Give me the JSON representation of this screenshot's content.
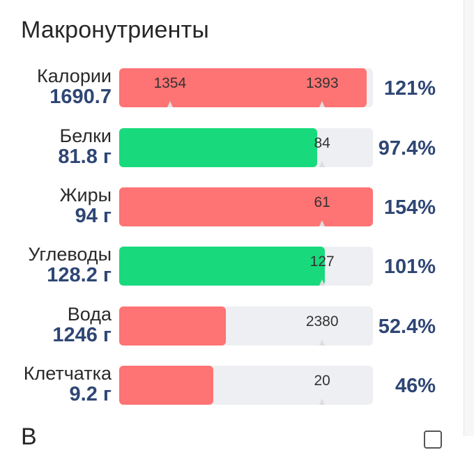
{
  "section": {
    "title": "Макронутриенты",
    "next_title": "В"
  },
  "colors": {
    "over": "#fe7373",
    "ok": "#18da7d",
    "track": "#eeeff2",
    "value_text": "#2e4674"
  },
  "macros": [
    {
      "label": "Калории",
      "value": "1690.7",
      "percent": "121%",
      "fill_fraction": 0.975,
      "status": "over",
      "markers": [
        {
          "text": "1354",
          "fraction": 0.2
        },
        {
          "text": "1393",
          "fraction": 0.8
        }
      ]
    },
    {
      "label": "Белки",
      "value": "81.8 г",
      "percent": "97.4%",
      "fill_fraction": 0.78,
      "status": "ok",
      "markers": [
        {
          "text": "84",
          "fraction": 0.8
        }
      ]
    },
    {
      "label": "Жиры",
      "value": "94 г",
      "percent": "154%",
      "fill_fraction": 1.0,
      "status": "over",
      "markers": [
        {
          "text": "61",
          "fraction": 0.8
        }
      ]
    },
    {
      "label": "Углеводы",
      "value": "128.2 г",
      "percent": "101%",
      "fill_fraction": 0.81,
      "status": "ok",
      "markers": [
        {
          "text": "127",
          "fraction": 0.8
        }
      ]
    },
    {
      "label": "Вода",
      "value": "1246 г",
      "percent": "52.4%",
      "fill_fraction": 0.42,
      "status": "over",
      "markers": [
        {
          "text": "2380",
          "fraction": 0.8
        }
      ]
    },
    {
      "label": "Клетчатка",
      "value": "9.2 г",
      "percent": "46%",
      "fill_fraction": 0.37,
      "status": "over",
      "markers": [
        {
          "text": "20",
          "fraction": 0.8
        }
      ]
    }
  ]
}
